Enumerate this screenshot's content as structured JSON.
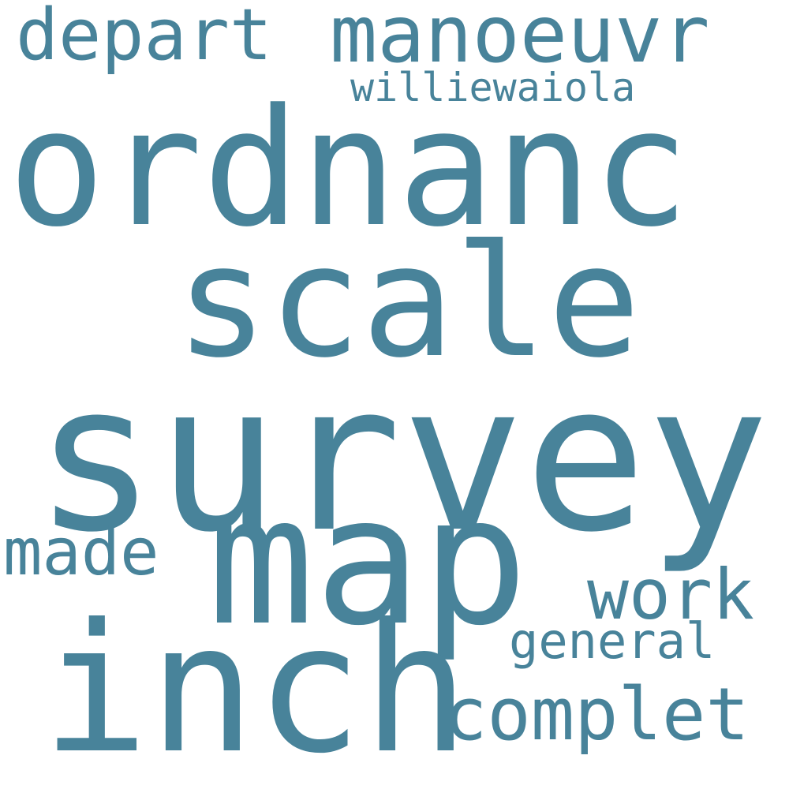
{
  "cloud": {
    "color": "#48839a",
    "background": "#ffffff",
    "words": {
      "survey": "survey",
      "ordnanc": "ordnanc",
      "scale": "scale",
      "map": "map",
      "inch": "inch",
      "manoeuvr": "manoeuvr",
      "depart": "depart",
      "complet": "complet",
      "work": "work",
      "made": "made",
      "general": "general",
      "williewaiola": "williewaiola"
    }
  }
}
